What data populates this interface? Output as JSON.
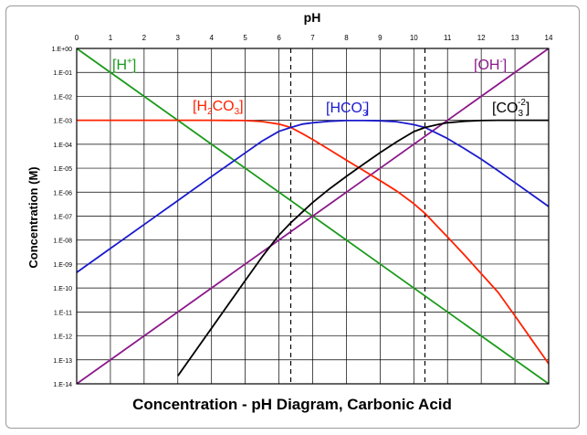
{
  "chart_data": {
    "type": "line",
    "title": "Concentration - pH Diagram, Carbonic Acid",
    "xlabel": "pH",
    "ylabel": "Concentration (M)",
    "xlim": [
      0,
      14
    ],
    "ylim_log10": [
      -14,
      0
    ],
    "y_scale": "log",
    "grid": true,
    "x_ticks": [
      "0",
      "1",
      "2",
      "3",
      "4",
      "5",
      "6",
      "7",
      "8",
      "9",
      "10",
      "11",
      "12",
      "13",
      "14"
    ],
    "y_ticks": [
      {
        "exp": 0,
        "label": "1.E+00"
      },
      {
        "exp": -1,
        "label": "1.E-01"
      },
      {
        "exp": -2,
        "label": "1.E-02"
      },
      {
        "exp": -3,
        "label": "1.E-03"
      },
      {
        "exp": -4,
        "label": "1.E-04"
      },
      {
        "exp": -5,
        "label": "1.E-05"
      },
      {
        "exp": -6,
        "label": "1.E-06"
      },
      {
        "exp": -7,
        "label": "1.E-07"
      },
      {
        "exp": -8,
        "label": "1.E-08"
      },
      {
        "exp": -9,
        "label": "1.E-09"
      },
      {
        "exp": -10,
        "label": "1.E-10"
      },
      {
        "exp": -11,
        "label": "1.E-11"
      },
      {
        "exp": -12,
        "label": "1.E-12"
      },
      {
        "exp": -13,
        "label": "1.E-13"
      },
      {
        "exp": -14,
        "label": "1.E-14"
      }
    ],
    "reference_lines_pH": [
      6.35,
      10.33
    ],
    "series": [
      {
        "name": "[H+]",
        "color": "#1a9a1a",
        "x": [
          0,
          14
        ],
        "log10_y": [
          0,
          -14
        ]
      },
      {
        "name": "[OH-]",
        "color": "#8b1a8b",
        "x": [
          0,
          14
        ],
        "log10_y": [
          -14,
          0
        ]
      },
      {
        "name": "[H2CO3]",
        "color": "#ff2200",
        "x": [
          0,
          1,
          2,
          3,
          4,
          5,
          5.5,
          6,
          6.35,
          6.7,
          7,
          7.5,
          8,
          8.5,
          9,
          9.5,
          10,
          10.33,
          10.7,
          11,
          11.5,
          12,
          12.5,
          13,
          13.5,
          14
        ],
        "log10_y": [
          -3,
          -3,
          -3,
          -3,
          -3,
          -3.01,
          -3.05,
          -3.16,
          -3.3,
          -3.56,
          -3.8,
          -4.23,
          -4.66,
          -5.09,
          -5.52,
          -5.96,
          -6.48,
          -6.88,
          -7.43,
          -7.87,
          -8.62,
          -9.4,
          -10.18,
          -11.16,
          -12.16,
          -13.16
        ]
      },
      {
        "name": "[HCO3-]",
        "color": "#1a1acc",
        "x": [
          0,
          1,
          2,
          3,
          4,
          5,
          5.5,
          6,
          6.35,
          6.7,
          7,
          7.5,
          8,
          8.5,
          9,
          9.5,
          10,
          10.33,
          10.7,
          11,
          11.5,
          12,
          12.5,
          13,
          13.5,
          14
        ],
        "log10_y": [
          -9.35,
          -8.35,
          -7.35,
          -6.35,
          -5.35,
          -4.36,
          -3.87,
          -3.46,
          -3.3,
          -3.16,
          -3.1,
          -3.04,
          -3.01,
          -3.01,
          -3.02,
          -3.06,
          -3.18,
          -3.3,
          -3.55,
          -3.76,
          -4.18,
          -4.62,
          -5.1,
          -5.6,
          -6.1,
          -6.6
        ]
      },
      {
        "name": "[CO3-2]",
        "color": "#000000",
        "x": [
          3,
          4,
          5,
          5.5,
          6,
          6.35,
          6.7,
          7,
          7.5,
          8,
          8.5,
          9,
          9.5,
          10,
          10.33,
          10.7,
          11,
          11.5,
          12,
          12.5,
          13,
          13.5,
          14
        ],
        "log10_y": [
          -13.67,
          -11.68,
          -9.69,
          -8.7,
          -7.79,
          -7.28,
          -6.82,
          -6.43,
          -5.86,
          -5.34,
          -4.84,
          -4.35,
          -3.89,
          -3.47,
          -3.3,
          -3.18,
          -3.1,
          -3.04,
          -3.01,
          -3,
          -3,
          -3,
          -3
        ]
      }
    ],
    "series_labels": {
      "h": {
        "main": "[H",
        "sup": "+",
        "close": "]"
      },
      "oh": {
        "main": "[OH",
        "sup": "-",
        "close": "]"
      },
      "h2co3": {
        "a": "[H",
        "sub1": "2",
        "b": "CO",
        "sub2": "3",
        "close": "]"
      },
      "hco3": {
        "a": "[HCO",
        "sub": "3",
        "sup": "-",
        "close": "]"
      },
      "co3": {
        "a": "[CO",
        "sub": "3",
        "sup": "-2",
        "close": "]"
      }
    }
  }
}
